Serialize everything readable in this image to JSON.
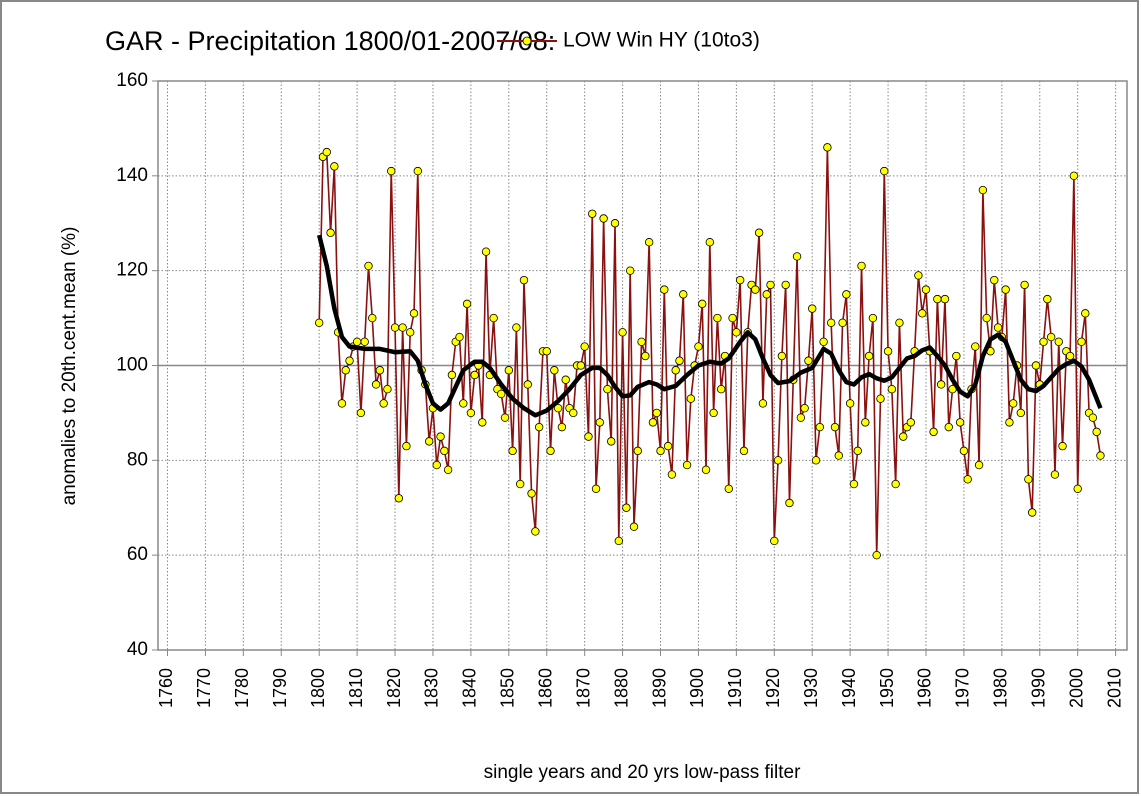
{
  "chart_data": {
    "type": "line",
    "title": "GAR - Precipitation 1800/01-2007/08:",
    "y_label": "anomalies to 20th.cent.mean (%)",
    "x_label": "single years and 20 yrs low-pass filter",
    "xlim": [
      1757.5,
      2013
    ],
    "ylim": [
      40,
      160
    ],
    "yticks": [
      40,
      60,
      80,
      100,
      120,
      140,
      160
    ],
    "xticks": [
      1760,
      1770,
      1780,
      1790,
      1800,
      1810,
      1820,
      1830,
      1840,
      1850,
      1860,
      1870,
      1880,
      1890,
      1900,
      1910,
      1920,
      1930,
      1940,
      1950,
      1960,
      1970,
      1980,
      1990,
      2000,
      2010
    ],
    "grid": true,
    "reference_line": 100,
    "legend": "top",
    "series": [
      {
        "name": "LOW Win HY (10to3)",
        "color": "#8b1010",
        "marker_color": "#ffff00",
        "x": [
          1800,
          1801,
          1802,
          1803,
          1804,
          1805,
          1806,
          1807,
          1808,
          1809,
          1810,
          1811,
          1812,
          1813,
          1814,
          1815,
          1816,
          1817,
          1818,
          1819,
          1820,
          1821,
          1822,
          1823,
          1824,
          1825,
          1826,
          1827,
          1828,
          1829,
          1830,
          1831,
          1832,
          1833,
          1834,
          1835,
          1836,
          1837,
          1838,
          1839,
          1840,
          1841,
          1842,
          1843,
          1844,
          1845,
          1846,
          1847,
          1848,
          1849,
          1850,
          1851,
          1852,
          1853,
          1854,
          1855,
          1856,
          1857,
          1858,
          1859,
          1860,
          1861,
          1862,
          1863,
          1864,
          1865,
          1866,
          1867,
          1868,
          1869,
          1870,
          1871,
          1872,
          1873,
          1874,
          1875,
          1876,
          1877,
          1878,
          1879,
          1880,
          1881,
          1882,
          1883,
          1884,
          1885,
          1886,
          1887,
          1888,
          1889,
          1890,
          1891,
          1892,
          1893,
          1894,
          1895,
          1896,
          1897,
          1898,
          1899,
          1900,
          1901,
          1902,
          1903,
          1904,
          1905,
          1906,
          1907,
          1908,
          1909,
          1910,
          1911,
          1912,
          1913,
          1914,
          1915,
          1916,
          1917,
          1918,
          1919,
          1920,
          1921,
          1922,
          1923,
          1924,
          1925,
          1926,
          1927,
          1928,
          1929,
          1930,
          1931,
          1932,
          1933,
          1934,
          1935,
          1936,
          1937,
          1938,
          1939,
          1940,
          1941,
          1942,
          1943,
          1944,
          1945,
          1946,
          1947,
          1948,
          1949,
          1950,
          1951,
          1952,
          1953,
          1954,
          1955,
          1956,
          1957,
          1958,
          1959,
          1960,
          1961,
          1962,
          1963,
          1964,
          1965,
          1966,
          1967,
          1968,
          1969,
          1970,
          1971,
          1972,
          1973,
          1974,
          1975,
          1976,
          1977,
          1978,
          1979,
          1980,
          1981,
          1982,
          1983,
          1984,
          1985,
          1986,
          1987,
          1988,
          1989,
          1990,
          1991,
          1992,
          1993,
          1994,
          1995,
          1996,
          1997,
          1998,
          1999,
          2000,
          2001,
          2002,
          2003,
          2004,
          2005,
          2006
        ],
        "values": [
          109,
          144,
          145,
          128,
          142,
          107,
          92,
          99,
          101,
          104,
          105,
          90,
          105,
          121,
          110,
          96,
          99,
          92,
          95,
          141,
          108,
          72,
          108,
          83,
          107,
          111,
          141,
          99,
          96,
          84,
          91,
          79,
          85,
          82,
          78,
          98,
          105,
          106,
          92,
          113,
          90,
          98,
          100,
          88,
          124,
          98,
          110,
          95,
          94,
          89,
          99,
          82,
          108,
          75,
          118,
          96,
          73,
          65,
          87,
          103,
          103,
          82,
          99,
          91,
          87,
          97,
          91,
          90,
          100,
          100,
          104,
          85,
          132,
          74,
          88,
          131,
          95,
          84,
          130,
          63,
          107,
          70,
          120,
          66,
          82,
          105,
          102,
          126,
          88,
          90,
          82,
          116,
          83,
          77,
          99,
          101,
          115,
          79,
          93,
          100,
          104,
          113,
          78,
          126,
          90,
          110,
          95,
          102,
          74,
          110,
          107,
          118,
          82,
          107,
          117,
          116,
          128,
          92,
          115,
          117,
          63,
          80,
          102,
          117,
          71,
          97,
          123,
          89,
          91,
          101,
          112,
          80,
          87,
          105,
          146,
          109,
          87,
          81,
          109,
          115,
          92,
          75,
          82,
          121,
          88,
          102,
          110,
          60,
          93,
          141,
          103,
          95,
          75,
          109,
          85,
          87,
          88,
          103,
          119,
          111,
          116,
          103,
          86,
          114,
          96,
          114,
          87,
          95,
          102,
          88,
          82,
          76,
          95,
          104,
          79,
          137,
          110,
          103,
          118,
          108,
          106,
          116,
          88,
          92,
          100,
          90,
          117,
          76,
          69,
          100,
          96,
          105,
          114,
          106,
          77,
          105,
          83,
          103,
          102,
          140,
          74,
          105,
          111,
          90,
          89,
          86,
          81
        ]
      },
      {
        "color": "#000000",
        "x": [
          1800,
          1802,
          1804,
          1806,
          1808,
          1812,
          1816,
          1820,
          1824,
          1826,
          1828,
          1830,
          1832,
          1834,
          1836,
          1838,
          1841,
          1843,
          1845,
          1848,
          1851,
          1854,
          1857,
          1860,
          1863,
          1866,
          1869,
          1872,
          1874,
          1876,
          1878,
          1880,
          1882,
          1884,
          1887,
          1889,
          1891,
          1894,
          1897,
          1900,
          1903,
          1906,
          1908,
          1911,
          1913,
          1915,
          1917,
          1919,
          1921,
          1924,
          1927,
          1930,
          1933,
          1935,
          1937,
          1939,
          1941,
          1943,
          1945,
          1947,
          1949,
          1951,
          1953,
          1955,
          1957,
          1959,
          1961,
          1963,
          1965,
          1967,
          1969,
          1971,
          1973,
          1975,
          1977,
          1979,
          1981,
          1983,
          1985,
          1987,
          1989,
          1991,
          1993,
          1995,
          1997,
          1999,
          2001,
          2003,
          2005,
          2006
        ],
        "values": [
          127.5,
          121,
          112,
          106,
          104,
          103.5,
          103.5,
          102.8,
          103,
          101,
          96,
          92,
          90.7,
          92,
          95.5,
          99,
          100.8,
          100.8,
          99.5,
          96,
          93,
          91,
          89.5,
          90.5,
          92.5,
          95,
          98,
          99.5,
          99.5,
          98,
          95.5,
          93.5,
          93.7,
          95.5,
          96.5,
          96,
          95,
          95.7,
          98,
          100,
          100.8,
          100.4,
          101.5,
          105,
          107,
          105.5,
          101.5,
          98,
          96.3,
          96.7,
          98.5,
          99.5,
          103.5,
          102.5,
          99,
          96.5,
          96,
          97.5,
          98.2,
          97.3,
          96.8,
          97.5,
          99.5,
          101.5,
          102,
          103.2,
          103.8,
          102,
          100,
          97,
          94.5,
          93.5,
          96,
          102,
          105.5,
          106.5,
          105,
          101,
          97,
          95,
          94.6,
          95.7,
          97.5,
          99.3,
          100.3,
          101,
          99.8,
          97,
          93,
          91
        ]
      }
    ]
  }
}
